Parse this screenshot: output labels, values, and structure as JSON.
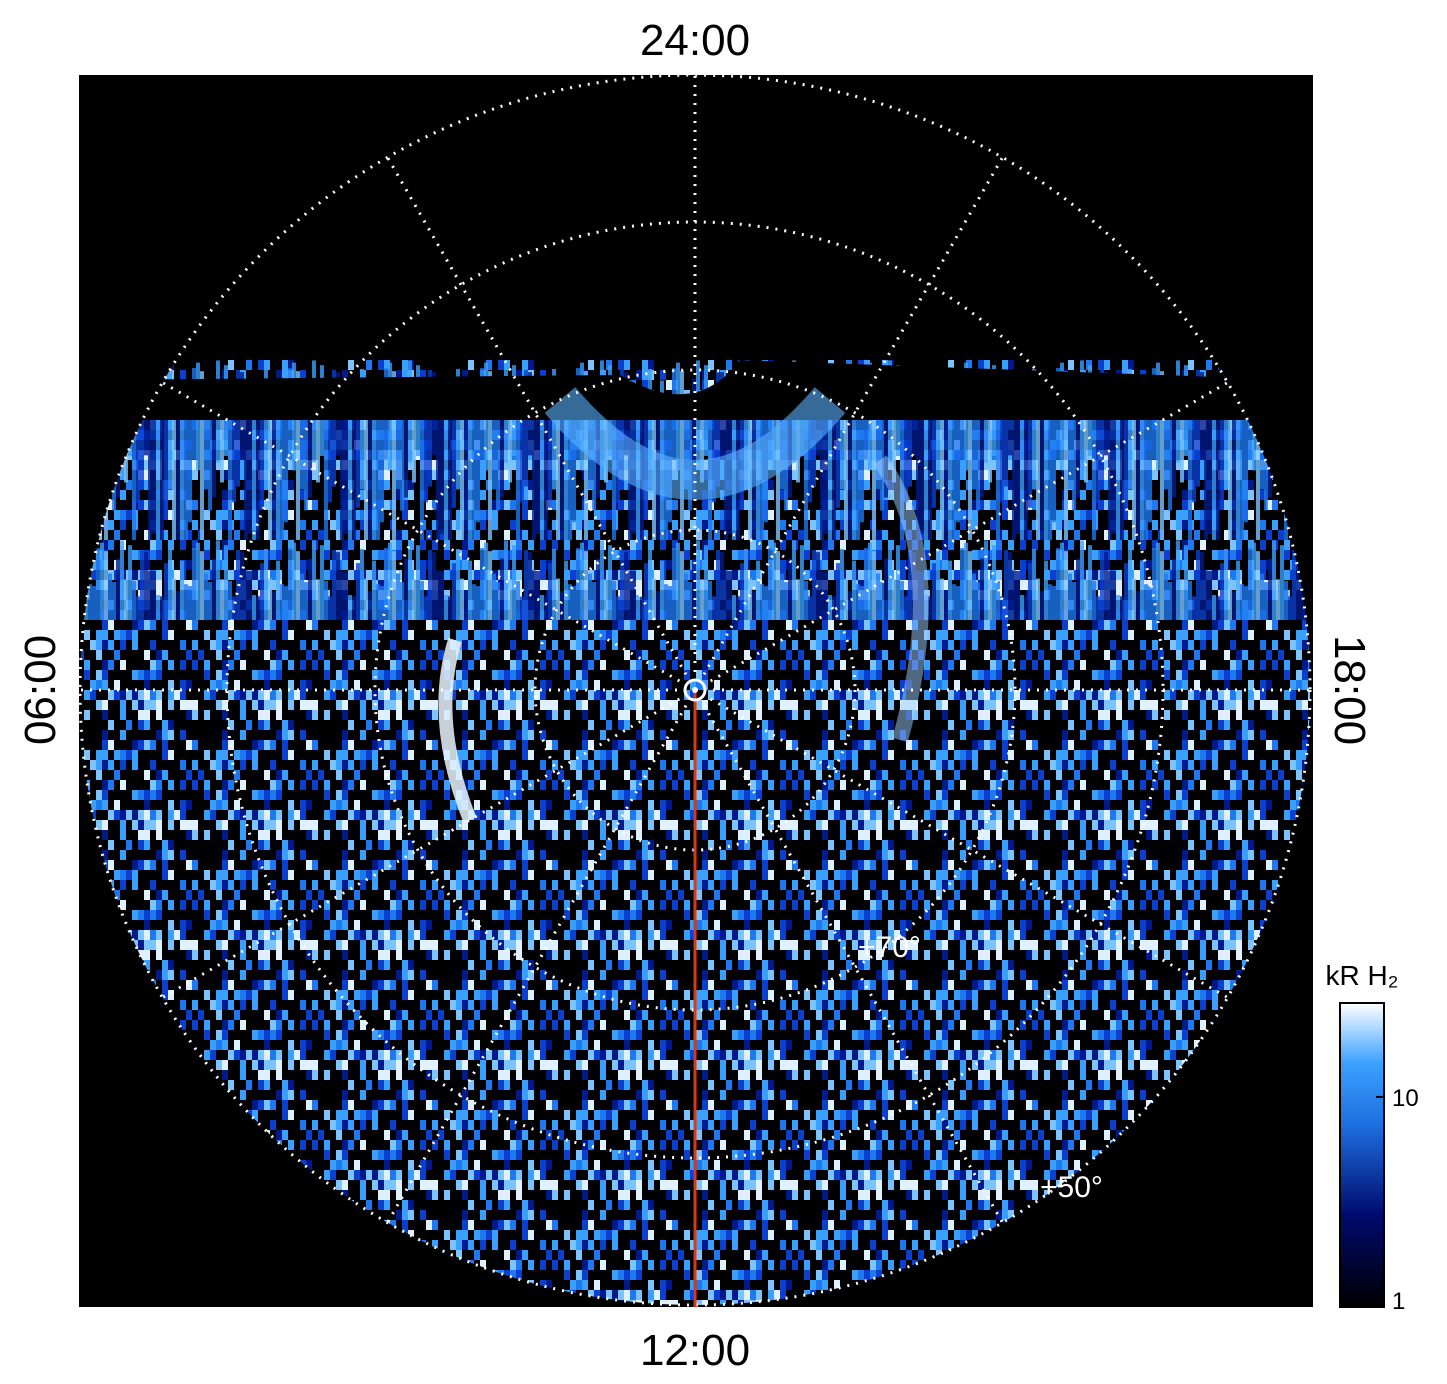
{
  "local_time_labels": {
    "top": "24:00",
    "left": "06:00",
    "right": "18:00",
    "bottom": "12:00"
  },
  "latitude_labels": [
    "+70°",
    "+50°"
  ],
  "colorbar": {
    "title": "kR H₂",
    "scale": "log",
    "lim": [
      1,
      28
    ],
    "ticks": [
      1,
      10
    ]
  }
}
